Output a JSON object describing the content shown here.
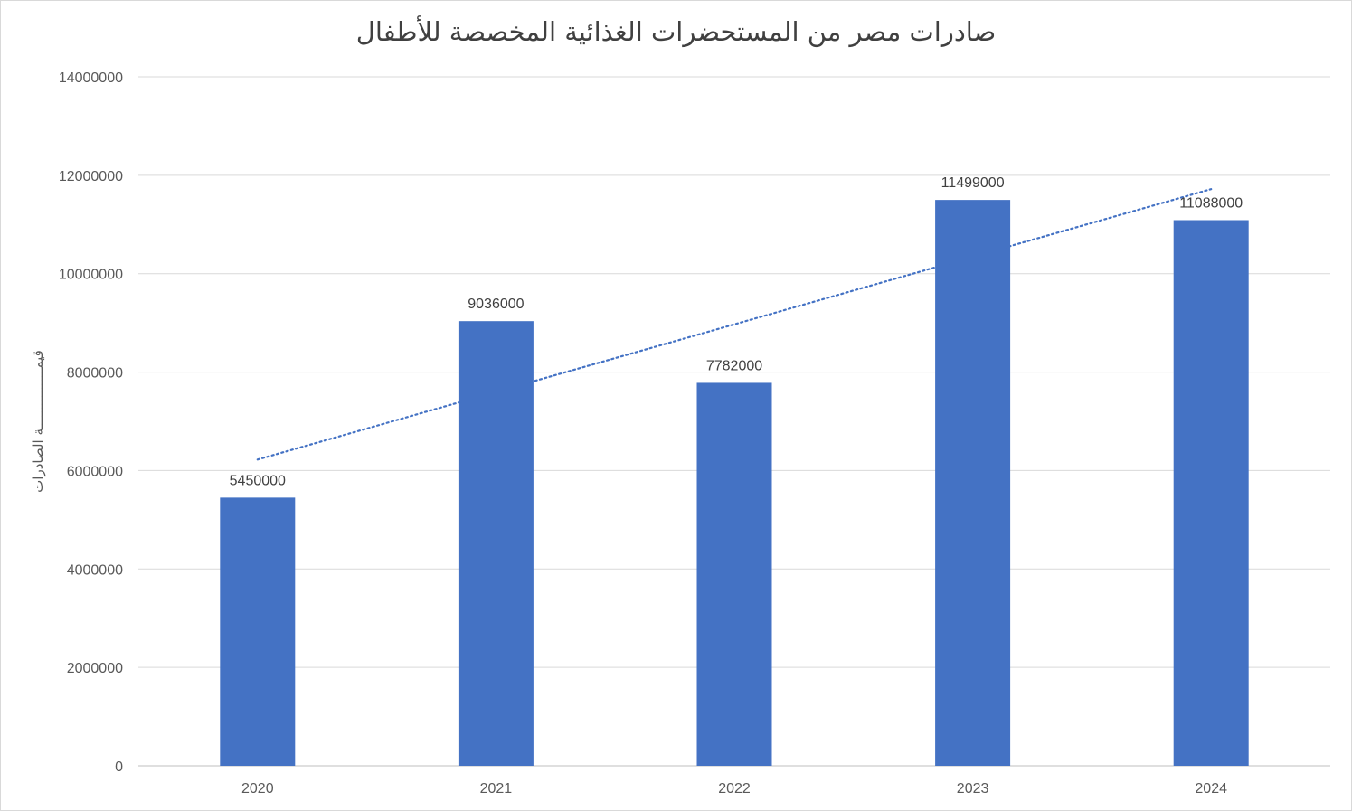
{
  "chart_data": {
    "type": "bar",
    "title": "صادرات مصر من المستحضرات الغذائية المخصصة للأطفال",
    "xlabel": "",
    "ylabel": "قيمـــــــــــــــة الصادرات",
    "categories": [
      "2020",
      "2021",
      "2022",
      "2023",
      "2024"
    ],
    "values": [
      5450000,
      9036000,
      7782000,
      11499000,
      11088000
    ],
    "data_labels": [
      "5450000",
      "9036000",
      "7782000",
      "11499000",
      "11088000"
    ],
    "ylim": [
      0,
      14000000
    ],
    "yticks": [
      0,
      2000000,
      4000000,
      6000000,
      8000000,
      10000000,
      12000000,
      14000000
    ],
    "ytick_labels": [
      "0",
      "2000000",
      "4000000",
      "6000000",
      "8000000",
      "10000000",
      "12000000",
      "14000000"
    ],
    "trendline": {
      "type": "linear",
      "style": "dotted"
    },
    "grid": true,
    "legend": "none",
    "colors": {
      "bar": "#4472c4",
      "trendline": "#4472c4",
      "grid": "#d9d9d9"
    }
  }
}
